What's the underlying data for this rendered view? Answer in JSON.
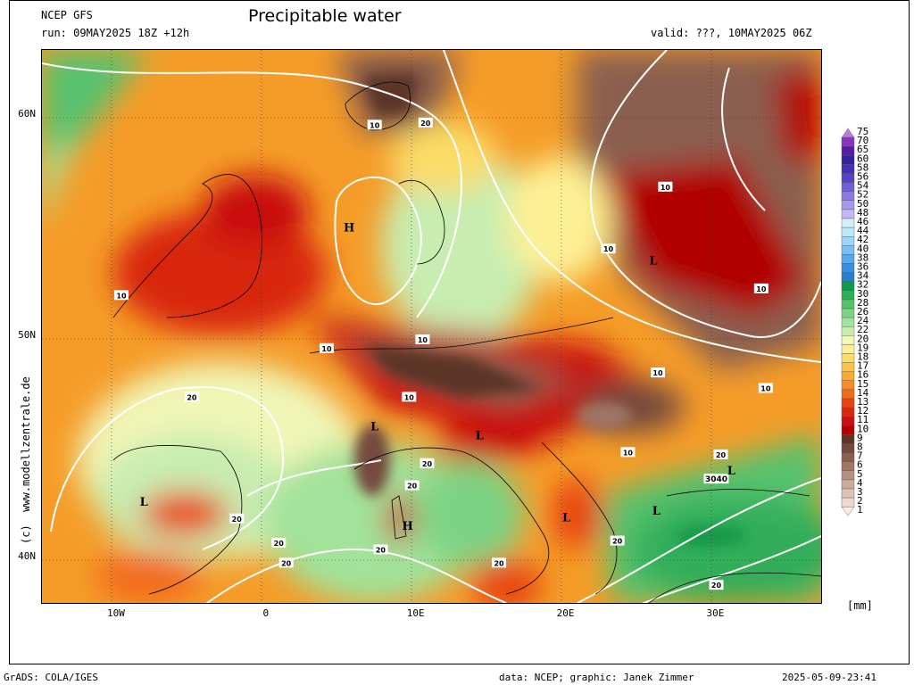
{
  "header": {
    "model": "NCEP GFS",
    "run": "run: 09MAY2025 18Z +12h",
    "title": "Precipitable water",
    "valid": "valid: ???, 10MAY2025 06Z"
  },
  "map": {
    "lat_ticks": [
      {
        "label": "60N",
        "value": 60
      },
      {
        "label": "50N",
        "value": 50
      },
      {
        "label": "40N",
        "value": 40
      }
    ],
    "lon_ticks": [
      {
        "label": "10W",
        "value": -10
      },
      {
        "label": "0",
        "value": 0
      },
      {
        "label": "10E",
        "value": 10
      },
      {
        "label": "20E",
        "value": 20
      },
      {
        "label": "30E",
        "value": 30
      }
    ],
    "lon_range": [
      -15,
      37
    ],
    "lat_range": [
      38,
      63
    ],
    "pressure_centers": [
      {
        "label": "H",
        "lon": 5.5,
        "lat": 55.0
      },
      {
        "label": "H",
        "lon": 9.4,
        "lat": 41.5
      },
      {
        "label": "L",
        "lon": 25.8,
        "lat": 53.5
      },
      {
        "label": "L",
        "lon": 7.2,
        "lat": 46.0
      },
      {
        "label": "L",
        "lon": 14.2,
        "lat": 45.6
      },
      {
        "label": "L",
        "lon": -8.2,
        "lat": 42.6
      },
      {
        "label": "L",
        "lon": 20.0,
        "lat": 41.9
      },
      {
        "label": "L",
        "lon": 26.0,
        "lat": 42.2
      },
      {
        "label": "L",
        "lon": 31.0,
        "lat": 44.0
      }
    ],
    "contour_labels": [
      {
        "text": "10",
        "lon": 7.2,
        "lat": 59.6
      },
      {
        "text": "20",
        "lon": 10.6,
        "lat": 59.7
      },
      {
        "text": "10",
        "lon": 26.6,
        "lat": 56.8
      },
      {
        "text": "10",
        "lon": 22.8,
        "lat": 54.0
      },
      {
        "text": "10",
        "lon": 33.0,
        "lat": 52.2
      },
      {
        "text": "10",
        "lon": -9.7,
        "lat": 51.9
      },
      {
        "text": "10",
        "lon": 10.4,
        "lat": 49.9
      },
      {
        "text": "10",
        "lon": 4.0,
        "lat": 49.5
      },
      {
        "text": "10",
        "lon": 26.1,
        "lat": 48.4
      },
      {
        "text": "10",
        "lon": 33.3,
        "lat": 47.7
      },
      {
        "text": "10",
        "lon": 9.5,
        "lat": 47.3
      },
      {
        "text": "10",
        "lon": 24.1,
        "lat": 44.8
      },
      {
        "text": "20",
        "lon": -5.0,
        "lat": 47.3
      },
      {
        "text": "20",
        "lon": 10.7,
        "lat": 44.3
      },
      {
        "text": "20",
        "lon": 9.7,
        "lat": 43.3
      },
      {
        "text": "20",
        "lon": -2.0,
        "lat": 41.8
      },
      {
        "text": "20",
        "lon": 0.8,
        "lat": 40.7
      },
      {
        "text": "20",
        "lon": 7.6,
        "lat": 40.4
      },
      {
        "text": "20",
        "lon": 23.4,
        "lat": 40.8
      },
      {
        "text": "20",
        "lon": 30.0,
        "lat": 38.8
      },
      {
        "text": "20",
        "lon": 1.3,
        "lat": 39.8
      },
      {
        "text": "20",
        "lon": 15.5,
        "lat": 39.8
      },
      {
        "text": "20",
        "lon": 30.3,
        "lat": 44.7
      },
      {
        "text": "3040",
        "lon": 30.0,
        "lat": 43.6
      }
    ]
  },
  "colorbar": {
    "levels": [
      1,
      2,
      3,
      4,
      5,
      6,
      7,
      8,
      9,
      10,
      11,
      12,
      13,
      14,
      15,
      16,
      17,
      18,
      19,
      20,
      22,
      24,
      26,
      28,
      30,
      32,
      34,
      36,
      38,
      40,
      42,
      44,
      46,
      48,
      50,
      52,
      54,
      56,
      58,
      60,
      65,
      70,
      75
    ],
    "colors": [
      "#fde9df",
      "#eed9d1",
      "#dcc3b8",
      "#c9aa9c",
      "#b58f80",
      "#a07666",
      "#8a5f50",
      "#744a3c",
      "#5c3428",
      "#b00000",
      "#c81010",
      "#d8280c",
      "#e84410",
      "#f26a1a",
      "#f78c28",
      "#f9aa34",
      "#fbc448",
      "#fcdc68",
      "#fdf094",
      "#f0f6b6",
      "#c8edb0",
      "#a2e29a",
      "#7cd384",
      "#56c26e",
      "#32ae5a",
      "#16984a",
      "#2a7fc8",
      "#3a90de",
      "#58a8ea",
      "#7cc0f2",
      "#a0d4f6",
      "#c0e6fa",
      "#d4eefb",
      "#c4b8f4",
      "#a898ec",
      "#8c7ae2",
      "#7060d8",
      "#5844c8",
      "#4430b8",
      "#3620a0",
      "#5a1aa8",
      "#8a34c0",
      "#c07ad8"
    ],
    "unit": "[mm]"
  },
  "footer": {
    "left": "GrADS: COLA/IGES",
    "credit": "data: NCEP; graphic: Janek Zimmer",
    "timestamp": "2025-05-09-23:41"
  },
  "watermark": "(c)  www.modellzentrale.de"
}
